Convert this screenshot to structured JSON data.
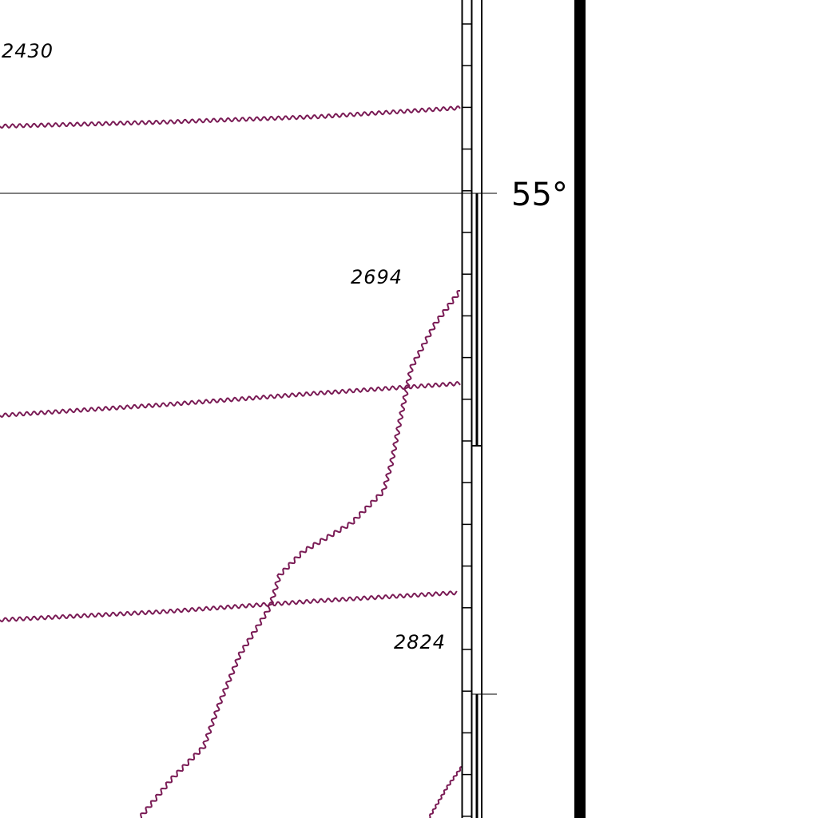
{
  "map": {
    "latitude_label": "55°",
    "soundings": [
      "2430",
      "2694",
      "2824"
    ],
    "colors": {
      "background": "#ffffff",
      "ink": "#000000",
      "cable": "#7a1b55"
    },
    "features": {
      "cables": [
        "submarine-cable-1",
        "submarine-cable-2",
        "submarine-cable-3",
        "submarine-cable-4",
        "submarine-cable-5"
      ],
      "border": "neatline-scale-bar"
    }
  }
}
